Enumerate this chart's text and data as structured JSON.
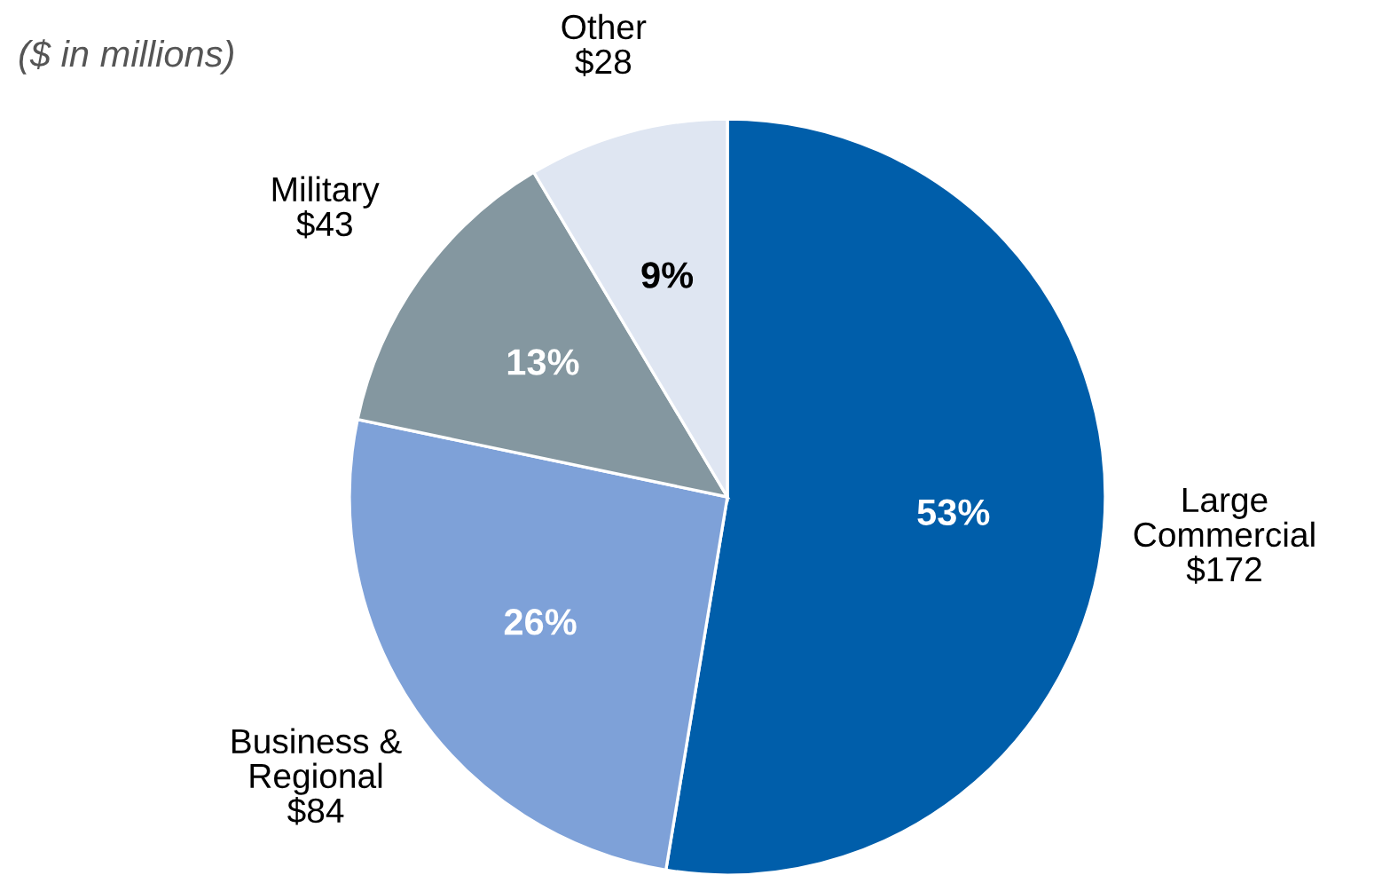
{
  "chart_data": {
    "type": "pie",
    "subtitle": "($ in millions)",
    "categories": [
      "Large Commercial",
      "Business & Regional",
      "Military",
      "Other"
    ],
    "values": [
      172,
      84,
      43,
      28
    ],
    "colors": [
      "#005eaa",
      "#7ea1d8",
      "#8497a0",
      "#dfe6f2"
    ],
    "value_labels": [
      "$172",
      "$84",
      "$43",
      "$28"
    ],
    "annotations": [
      {
        "text": "53%",
        "x": "Large Commercial"
      },
      {
        "text": "26%",
        "x": "Business & Regional"
      },
      {
        "text": "13%",
        "x": "Military"
      },
      {
        "text": "9%",
        "x": "Other"
      }
    ]
  }
}
